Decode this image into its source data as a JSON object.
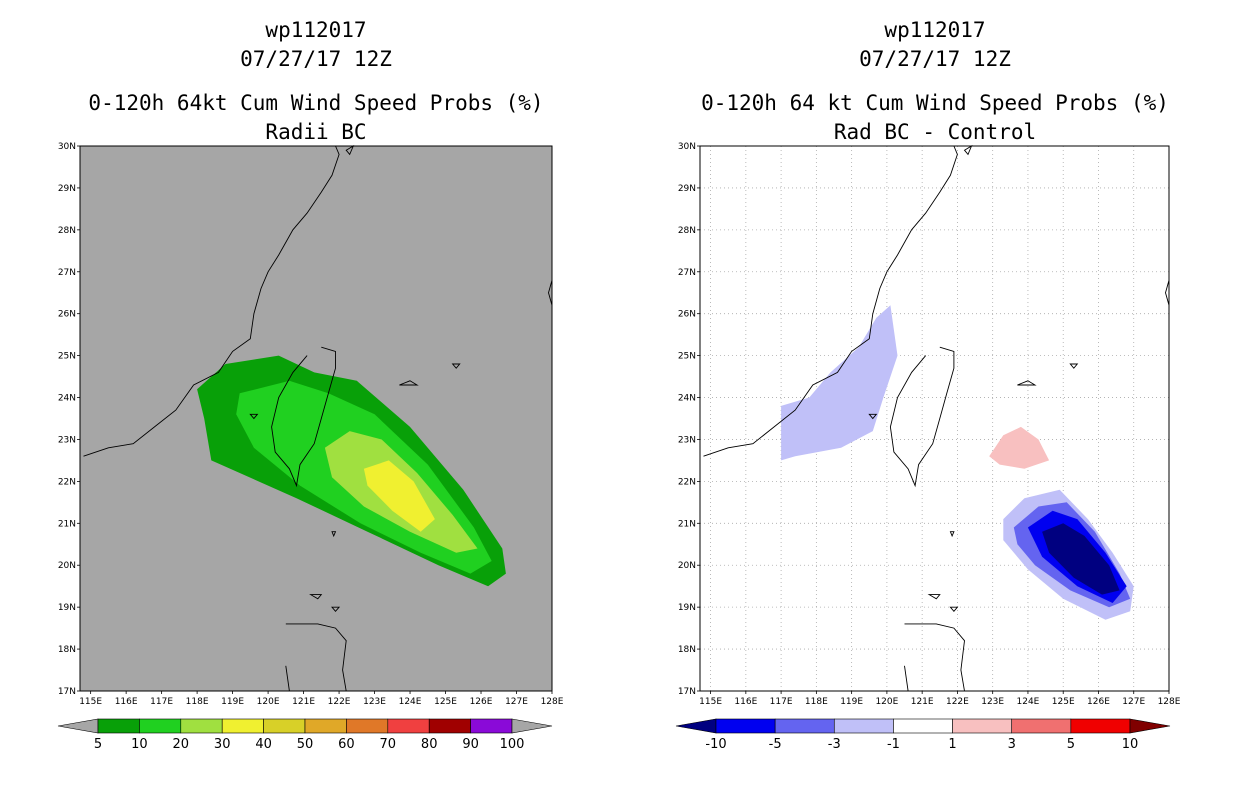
{
  "panels": [
    {
      "id": "left",
      "title_lines": [
        "wp112017",
        "07/27/17 12Z",
        "0-120h 64kt Cum Wind Speed Probs (%)",
        "Radii BC"
      ],
      "background": "#a6a6a6",
      "grid": false,
      "colorbar": {
        "labels": [
          "5",
          "10",
          "20",
          "30",
          "40",
          "50",
          "60",
          "70",
          "80",
          "90",
          "100"
        ],
        "colors": [
          "#08a008",
          "#20d020",
          "#a0e040",
          "#f0f030",
          "#d8d028",
          "#e0a828",
          "#e07828",
          "#f04040",
          "#a00000",
          "#8a0ad8"
        ],
        "end_left": "#a6a6a6",
        "end_right": "#a6a6a6"
      }
    },
    {
      "id": "right",
      "title_lines": [
        "wp112017",
        "07/27/17 12Z",
        "0-120h 64 kt Cum Wind Speed Probs (%)",
        "Rad BC - Control"
      ],
      "background": "#ffffff",
      "grid": true,
      "colorbar": {
        "labels": [
          "-10",
          "-5",
          "-3",
          "-1",
          "1",
          "3",
          "5",
          "10"
        ],
        "colors": [
          "#0000f0",
          "#6464f0",
          "#c0c0f8",
          "#ffffff",
          "#f8c0c0",
          "#f07070",
          "#f00000"
        ],
        "end_left": "#000080",
        "end_right": "#800000"
      }
    }
  ],
  "axes": {
    "lon_labels": [
      "115E",
      "116E",
      "117E",
      "118E",
      "119E",
      "120E",
      "121E",
      "122E",
      "123E",
      "124E",
      "125E",
      "126E",
      "127E",
      "128E"
    ],
    "lat_labels": [
      "30N",
      "29N",
      "28N",
      "27N",
      "26N",
      "25N",
      "24N",
      "23N",
      "22N",
      "21N",
      "20N",
      "19N",
      "18N",
      "17N"
    ],
    "lon_range": [
      114.7,
      128.0
    ],
    "lat_range": [
      17.0,
      30.0
    ]
  },
  "map_data": {
    "left_prob_contours": [
      {
        "level": 5,
        "color": "#08a008",
        "pts": [
          [
            118.0,
            24.2
          ],
          [
            118.8,
            24.8
          ],
          [
            120.3,
            25.0
          ],
          [
            121.3,
            24.6
          ],
          [
            122.5,
            24.4
          ],
          [
            124.0,
            23.3
          ],
          [
            125.5,
            21.8
          ],
          [
            126.6,
            20.4
          ],
          [
            126.7,
            19.8
          ],
          [
            126.2,
            19.5
          ],
          [
            124.8,
            20.0
          ],
          [
            122.8,
            20.8
          ],
          [
            120.8,
            21.6
          ],
          [
            118.4,
            22.5
          ],
          [
            118.2,
            23.5
          ]
        ]
      },
      {
        "level": 10,
        "color": "#20d020",
        "pts": [
          [
            119.2,
            24.1
          ],
          [
            120.6,
            24.4
          ],
          [
            121.7,
            24.1
          ],
          [
            123.0,
            23.6
          ],
          [
            124.5,
            22.4
          ],
          [
            125.8,
            20.9
          ],
          [
            126.3,
            20.1
          ],
          [
            125.7,
            19.8
          ],
          [
            124.3,
            20.3
          ],
          [
            122.6,
            21.0
          ],
          [
            120.9,
            21.9
          ],
          [
            119.6,
            22.8
          ],
          [
            119.1,
            23.6
          ]
        ]
      },
      {
        "level": 20,
        "color": "#a0e040",
        "pts": [
          [
            121.6,
            22.8
          ],
          [
            122.3,
            23.2
          ],
          [
            123.2,
            23.0
          ],
          [
            124.2,
            22.2
          ],
          [
            125.2,
            21.2
          ],
          [
            125.9,
            20.4
          ],
          [
            125.3,
            20.3
          ],
          [
            124.0,
            20.8
          ],
          [
            122.7,
            21.4
          ],
          [
            121.8,
            22.1
          ]
        ]
      },
      {
        "level": 30,
        "color": "#f0f030",
        "pts": [
          [
            122.7,
            22.3
          ],
          [
            123.4,
            22.5
          ],
          [
            124.1,
            22.0
          ],
          [
            124.7,
            21.1
          ],
          [
            124.3,
            20.8
          ],
          [
            123.5,
            21.3
          ],
          [
            122.8,
            21.9
          ]
        ]
      }
    ],
    "right_diff_contours": [
      {
        "level": -3,
        "color": "#c0c0f8",
        "pts": [
          [
            117.0,
            23.8
          ],
          [
            117.8,
            24.0
          ],
          [
            118.4,
            24.6
          ],
          [
            119.2,
            25.2
          ],
          [
            119.7,
            25.9
          ],
          [
            120.1,
            26.2
          ],
          [
            120.3,
            25.0
          ],
          [
            119.9,
            24.0
          ],
          [
            119.6,
            23.2
          ],
          [
            118.7,
            22.8
          ],
          [
            117.4,
            22.6
          ],
          [
            117.0,
            22.5
          ]
        ]
      },
      {
        "level": 1,
        "color": "#f8c0c0",
        "pts": [
          [
            122.9,
            22.6
          ],
          [
            123.3,
            23.1
          ],
          [
            123.8,
            23.3
          ],
          [
            124.3,
            23.0
          ],
          [
            124.6,
            22.5
          ],
          [
            123.9,
            22.3
          ],
          [
            123.2,
            22.4
          ]
        ]
      },
      {
        "level": -1,
        "color": "#c0c0f8",
        "pts": [
          [
            123.3,
            21.1
          ],
          [
            123.9,
            21.6
          ],
          [
            124.9,
            21.8
          ],
          [
            125.7,
            21.1
          ],
          [
            126.4,
            20.3
          ],
          [
            127.0,
            19.5
          ],
          [
            126.9,
            18.9
          ],
          [
            126.2,
            18.7
          ],
          [
            125.0,
            19.2
          ],
          [
            124.0,
            19.9
          ],
          [
            123.3,
            20.6
          ]
        ]
      },
      {
        "level": -3,
        "color": "#6464f0",
        "pts": [
          [
            123.6,
            20.9
          ],
          [
            124.3,
            21.4
          ],
          [
            125.1,
            21.5
          ],
          [
            125.9,
            20.8
          ],
          [
            126.6,
            19.8
          ],
          [
            126.9,
            19.2
          ],
          [
            126.3,
            19.0
          ],
          [
            125.2,
            19.4
          ],
          [
            124.2,
            20.0
          ],
          [
            123.7,
            20.5
          ]
        ]
      },
      {
        "level": -5,
        "color": "#0000f0",
        "pts": [
          [
            124.0,
            20.9
          ],
          [
            124.7,
            21.3
          ],
          [
            125.4,
            21.1
          ],
          [
            126.2,
            20.3
          ],
          [
            126.8,
            19.5
          ],
          [
            126.4,
            19.1
          ],
          [
            125.4,
            19.5
          ],
          [
            124.4,
            20.2
          ]
        ]
      },
      {
        "level": -10,
        "color": "#000080",
        "pts": [
          [
            124.4,
            20.8
          ],
          [
            125.0,
            21.0
          ],
          [
            125.6,
            20.7
          ],
          [
            126.3,
            20.0
          ],
          [
            126.6,
            19.4
          ],
          [
            126.1,
            19.3
          ],
          [
            125.3,
            19.7
          ],
          [
            124.6,
            20.3
          ]
        ]
      }
    ],
    "coastlines": [
      {
        "name": "taiwan",
        "pts": [
          [
            121.5,
            25.2
          ],
          [
            121.9,
            25.1
          ],
          [
            121.9,
            24.7
          ],
          [
            121.7,
            24.1
          ],
          [
            121.5,
            23.5
          ],
          [
            121.3,
            22.9
          ],
          [
            120.9,
            22.4
          ],
          [
            120.8,
            21.9
          ],
          [
            120.6,
            22.3
          ],
          [
            120.2,
            22.7
          ],
          [
            120.1,
            23.3
          ],
          [
            120.3,
            24.0
          ],
          [
            120.7,
            24.6
          ],
          [
            121.1,
            25.0
          ]
        ]
      },
      {
        "name": "china-coast",
        "pts": [
          [
            114.8,
            22.6
          ],
          [
            115.5,
            22.8
          ],
          [
            116.2,
            22.9
          ],
          [
            116.8,
            23.3
          ],
          [
            117.4,
            23.7
          ],
          [
            117.9,
            24.3
          ],
          [
            118.6,
            24.6
          ],
          [
            119.0,
            25.1
          ],
          [
            119.5,
            25.4
          ],
          [
            119.6,
            26.0
          ],
          [
            119.8,
            26.6
          ],
          [
            120.0,
            27.0
          ],
          [
            120.3,
            27.4
          ],
          [
            120.7,
            28.0
          ],
          [
            121.1,
            28.4
          ],
          [
            121.5,
            28.9
          ],
          [
            121.8,
            29.3
          ],
          [
            122.0,
            29.8
          ],
          [
            121.9,
            30.0
          ]
        ]
      },
      {
        "name": "luzon",
        "pts": [
          [
            120.5,
            18.6
          ],
          [
            120.9,
            18.6
          ],
          [
            121.4,
            18.6
          ],
          [
            121.9,
            18.5
          ],
          [
            122.2,
            18.2
          ],
          [
            122.1,
            17.5
          ],
          [
            122.2,
            17.0
          ],
          [
            120.6,
            17.0
          ],
          [
            120.5,
            17.6
          ]
        ]
      }
    ],
    "islands": [
      {
        "name": "penghu",
        "pts": [
          [
            119.5,
            23.6
          ],
          [
            119.7,
            23.6
          ],
          [
            119.6,
            23.5
          ]
        ]
      },
      {
        "name": "ryukyu-1",
        "pts": [
          [
            123.7,
            24.3
          ],
          [
            124.0,
            24.4
          ],
          [
            124.2,
            24.3
          ]
        ]
      },
      {
        "name": "ryukyu-2",
        "pts": [
          [
            125.2,
            24.8
          ],
          [
            125.4,
            24.8
          ],
          [
            125.3,
            24.7
          ]
        ]
      },
      {
        "name": "batanes-1",
        "pts": [
          [
            121.8,
            20.8
          ],
          [
            121.9,
            20.8
          ],
          [
            121.85,
            20.7
          ]
        ]
      },
      {
        "name": "babuyan-1",
        "pts": [
          [
            121.2,
            19.3
          ],
          [
            121.5,
            19.3
          ],
          [
            121.4,
            19.2
          ]
        ]
      },
      {
        "name": "babuyan-2",
        "pts": [
          [
            121.8,
            19.0
          ],
          [
            122.0,
            19.0
          ],
          [
            121.9,
            18.9
          ]
        ]
      },
      {
        "name": "zhoushan",
        "pts": [
          [
            122.2,
            29.9
          ],
          [
            122.4,
            30.0
          ],
          [
            122.3,
            29.8
          ]
        ]
      },
      {
        "name": "japan-edge",
        "pts": [
          [
            127.9,
            26.5
          ],
          [
            128.0,
            26.8
          ],
          [
            128.0,
            26.2
          ]
        ]
      }
    ]
  }
}
